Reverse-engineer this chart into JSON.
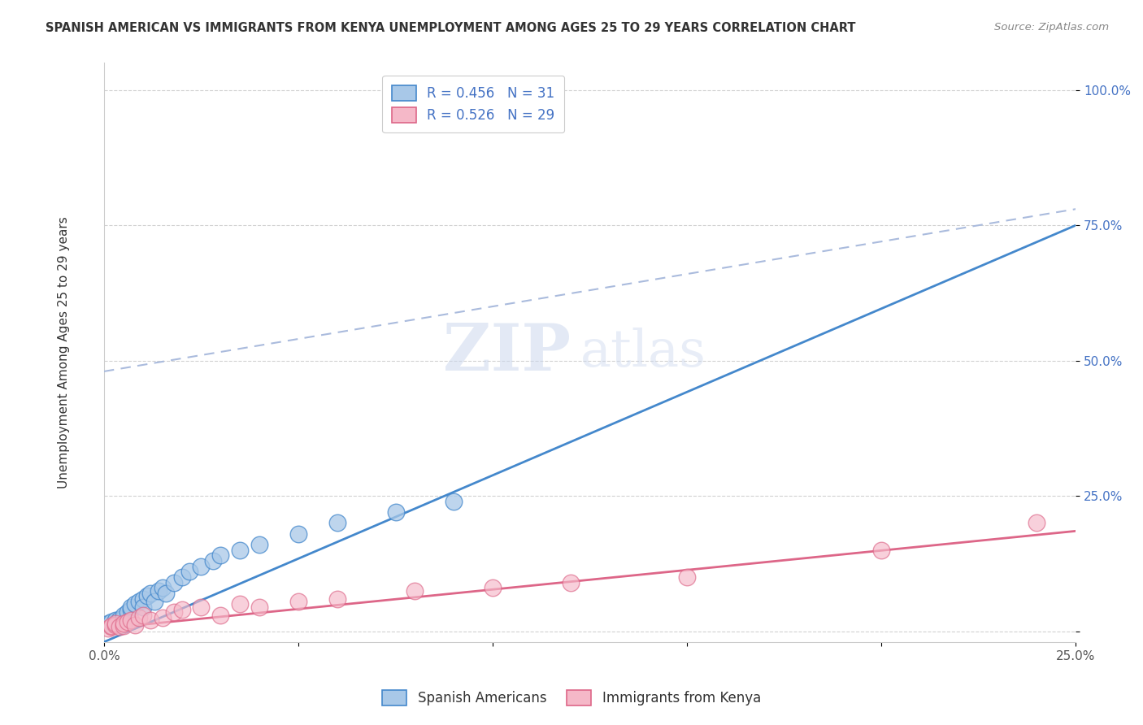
{
  "title": "SPANISH AMERICAN VS IMMIGRANTS FROM KENYA UNEMPLOYMENT AMONG AGES 25 TO 29 YEARS CORRELATION CHART",
  "source": "Source: ZipAtlas.com",
  "ylabel": "Unemployment Among Ages 25 to 29 years",
  "xlim": [
    0.0,
    0.25
  ],
  "ylim": [
    -0.02,
    1.05
  ],
  "xticks": [
    0.0,
    0.05,
    0.1,
    0.15,
    0.2,
    0.25
  ],
  "yticks": [
    0.0,
    0.25,
    0.5,
    0.75,
    1.0
  ],
  "xtick_labels": [
    "0.0%",
    "",
    "",
    "",
    "",
    "25.0%"
  ],
  "ytick_labels": [
    "",
    "25.0%",
    "50.0%",
    "75.0%",
    "100.0%"
  ],
  "legend1_label": "R = 0.456   N = 31",
  "legend2_label": "R = 0.526   N = 29",
  "legend_group1": "Spanish Americans",
  "legend_group2": "Immigrants from Kenya",
  "color_blue": "#a8c8e8",
  "color_pink": "#f5b8c8",
  "color_line_blue": "#4488cc",
  "color_line_pink": "#dd6688",
  "color_line_dashed": "#aabbdd",
  "watermark_text": "ZIP",
  "watermark_text2": "atlas",
  "blue_x": [
    0.001,
    0.002,
    0.003,
    0.004,
    0.005,
    0.005,
    0.006,
    0.007,
    0.007,
    0.008,
    0.009,
    0.01,
    0.01,
    0.011,
    0.012,
    0.013,
    0.014,
    0.015,
    0.016,
    0.018,
    0.02,
    0.022,
    0.025,
    0.028,
    0.03,
    0.035,
    0.04,
    0.05,
    0.06,
    0.075,
    0.09
  ],
  "blue_y": [
    0.015,
    0.018,
    0.02,
    0.022,
    0.025,
    0.03,
    0.035,
    0.04,
    0.045,
    0.05,
    0.055,
    0.06,
    0.045,
    0.065,
    0.07,
    0.055,
    0.075,
    0.08,
    0.07,
    0.09,
    0.1,
    0.11,
    0.12,
    0.13,
    0.14,
    0.15,
    0.16,
    0.18,
    0.2,
    0.22,
    0.24
  ],
  "pink_x": [
    0.001,
    0.002,
    0.002,
    0.003,
    0.003,
    0.004,
    0.005,
    0.005,
    0.006,
    0.007,
    0.008,
    0.009,
    0.01,
    0.012,
    0.015,
    0.018,
    0.02,
    0.025,
    0.03,
    0.035,
    0.04,
    0.05,
    0.06,
    0.08,
    0.1,
    0.12,
    0.15,
    0.2,
    0.24
  ],
  "pink_y": [
    0.005,
    0.008,
    0.01,
    0.012,
    0.015,
    0.008,
    0.01,
    0.015,
    0.018,
    0.02,
    0.012,
    0.025,
    0.03,
    0.02,
    0.025,
    0.035,
    0.04,
    0.045,
    0.03,
    0.05,
    0.045,
    0.055,
    0.06,
    0.075,
    0.08,
    0.09,
    0.1,
    0.15,
    0.2
  ],
  "blue_line_x0": 0.0,
  "blue_line_y0": -0.02,
  "blue_line_x1": 0.25,
  "blue_line_y1": 0.75,
  "dashed_line_x0": 0.0,
  "dashed_line_y0": 0.48,
  "dashed_line_x1": 0.25,
  "dashed_line_y1": 0.78,
  "pink_line_x0": 0.0,
  "pink_line_y0": 0.005,
  "pink_line_x1": 0.25,
  "pink_line_y1": 0.185
}
